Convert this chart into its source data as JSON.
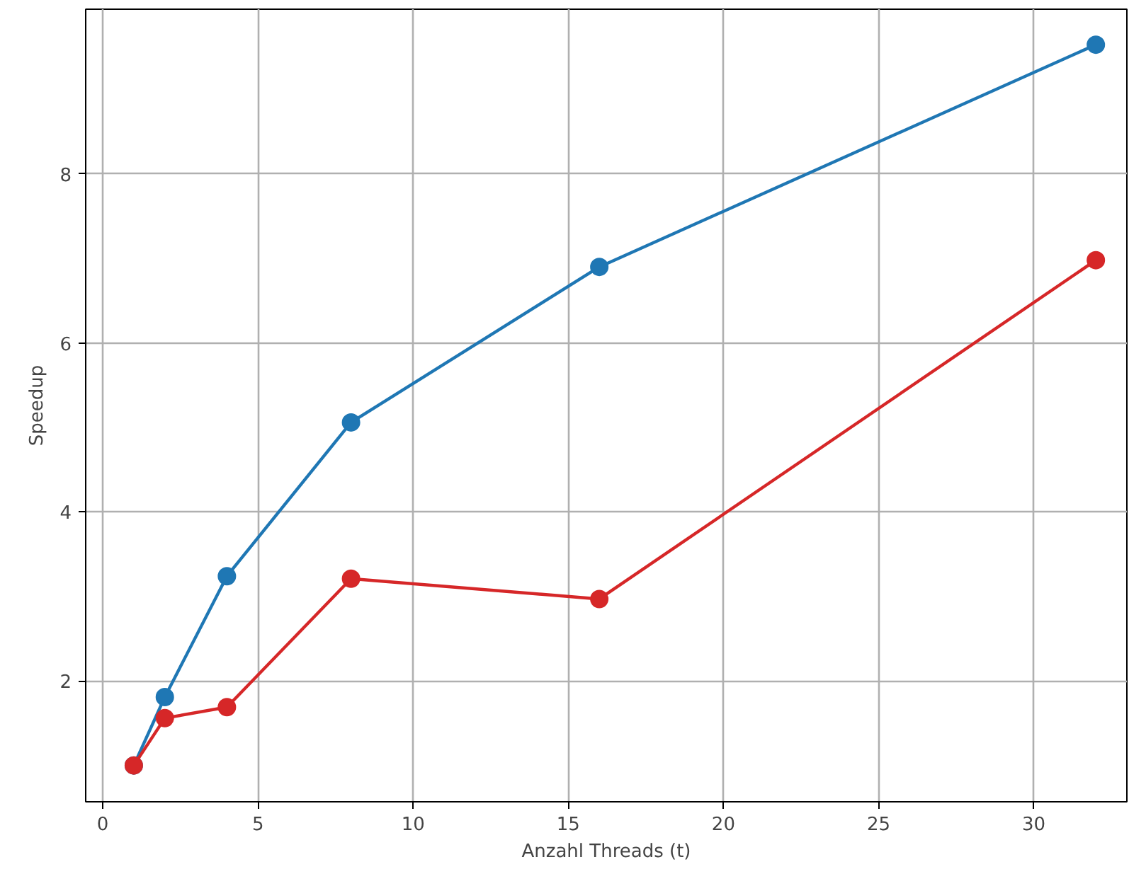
{
  "chart_data": {
    "type": "line",
    "xlabel": "Anzahl Threads (t)",
    "ylabel": "Speedup",
    "x": [
      1,
      2,
      4,
      8,
      16,
      32
    ],
    "series": [
      {
        "color": "#1f77b4",
        "values": [
          1.0,
          1.81,
          3.24,
          5.06,
          6.9,
          9.53
        ]
      },
      {
        "color": "#d62728",
        "values": [
          1.0,
          1.56,
          1.69,
          3.21,
          2.97,
          6.98
        ]
      }
    ],
    "xlim": [
      -0.55,
      33.0
    ],
    "ylim": [
      0.57,
      9.95
    ],
    "xticks": [
      0,
      5,
      10,
      15,
      20,
      25,
      30
    ],
    "yticks": [
      2,
      4,
      6,
      8
    ],
    "grid": true,
    "marker": "circle",
    "line_style": "solid"
  }
}
